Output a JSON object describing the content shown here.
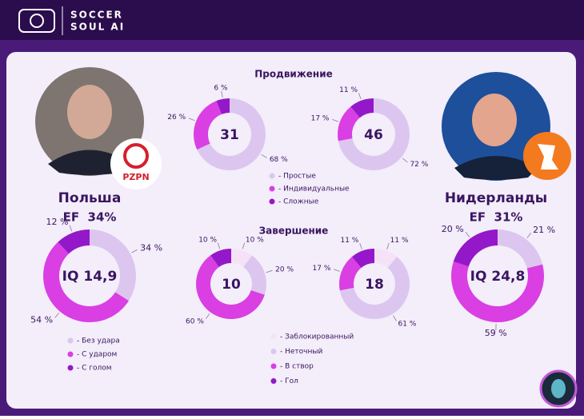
{
  "header": {
    "brand_line1": "SOCCER",
    "brand_line2": "SOUL AI"
  },
  "teams": [
    {
      "name": "Польша",
      "ef": "EF  34%",
      "badge": "PZPN"
    },
    {
      "name": "Нидерланды",
      "ef": "EF  31%"
    }
  ],
  "chart_data": [
    {
      "type": "pie",
      "title": "Продвижение",
      "center_label": 31,
      "categories": [
        "- Простые",
        "- Индивидуальные",
        "- Сложные"
      ],
      "values": [
        68,
        26,
        6
      ],
      "value_labels": [
        "68 %",
        "26 %",
        "6 %"
      ],
      "colors": [
        "#dcc6f0",
        "#d93fe3",
        "#9418c9"
      ]
    },
    {
      "type": "pie",
      "center_label": 46,
      "categories": [
        "- Простые",
        "- Индивидуальные",
        "- Сложные"
      ],
      "values": [
        72,
        17,
        11
      ],
      "value_labels": [
        "72 %",
        "17 %",
        "11 %"
      ],
      "colors": [
        "#dcc6f0",
        "#d93fe3",
        "#9418c9"
      ]
    },
    {
      "type": "pie",
      "center_label": "IQ 14,9",
      "categories": [
        "- Без удара",
        "- С ударом",
        "- С голом"
      ],
      "values": [
        34,
        54,
        12
      ],
      "value_labels": [
        "34 %",
        "54 %",
        "12 %"
      ],
      "colors": [
        "#dcc6f0",
        "#d93fe3",
        "#9418c9"
      ]
    },
    {
      "type": "pie",
      "center_label": "IQ 24,8",
      "categories": [
        "- Без удара",
        "- С ударом",
        "- С голом"
      ],
      "values": [
        21,
        59,
        20
      ],
      "value_labels": [
        "21 %",
        "59 %",
        "20 %"
      ],
      "colors": [
        "#dcc6f0",
        "#d93fe3",
        "#9418c9"
      ]
    },
    {
      "type": "pie",
      "title": "Завершение",
      "center_label": 10,
      "categories": [
        "- Заблокированный",
        "- Неточный",
        "- В створ",
        "- Гол"
      ],
      "values": [
        10,
        20,
        60,
        10
      ],
      "value_labels": [
        "10 %",
        "20 %",
        "60 %",
        "10 %"
      ],
      "colors": [
        "#f6e2f6",
        "#dcc6f0",
        "#d93fe3",
        "#9418c9"
      ]
    },
    {
      "type": "pie",
      "center_label": 18,
      "categories": [
        "- Заблокированный",
        "- Неточный",
        "- В створ",
        "- Гол"
      ],
      "values": [
        11,
        61,
        17,
        11
      ],
      "value_labels": [
        "11 %",
        "61 %",
        "17 %",
        "11 %"
      ],
      "colors": [
        "#f6e2f6",
        "#dcc6f0",
        "#d93fe3",
        "#9418c9"
      ]
    }
  ]
}
